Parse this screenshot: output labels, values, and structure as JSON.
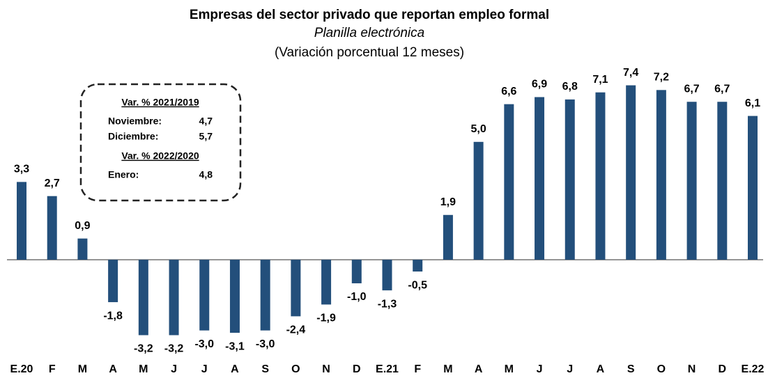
{
  "chart_data": {
    "type": "bar",
    "title": "Empresas del sector privado que reportan empleo formal",
    "subtitle": "Planilla electrónica",
    "note": "(Variación porcentual 12 meses)",
    "categories": [
      "E.20",
      "F",
      "M",
      "A",
      "M",
      "J",
      "J",
      "A",
      "S",
      "O",
      "N",
      "D",
      "E.21",
      "F",
      "M",
      "A",
      "M",
      "J",
      "J",
      "A",
      "S",
      "O",
      "N",
      "D",
      "E.22"
    ],
    "values": [
      3.3,
      2.7,
      0.9,
      -1.8,
      -3.2,
      -3.2,
      -3.0,
      -3.1,
      -3.0,
      -2.4,
      -1.9,
      -1.0,
      -1.3,
      -0.5,
      1.9,
      5.0,
      6.6,
      6.9,
      6.8,
      7.1,
      7.4,
      7.2,
      6.7,
      6.7,
      6.1
    ],
    "value_labels": [
      "3,3",
      "2,7",
      "0,9",
      "-1,8",
      "-3,2",
      "-3,2",
      "-3,0",
      "-3,1",
      "-3,0",
      "-2,4",
      "-1,9",
      "-1,0",
      "-1,3",
      "-0,5",
      "1,9",
      "5,0",
      "6,6",
      "6,9",
      "6,8",
      "7,1",
      "7,4",
      "7,2",
      "6,7",
      "6,7",
      "6,1"
    ],
    "color": "#234f7b",
    "ylim": [
      -3.6,
      7.8
    ],
    "inset": [
      {
        "heading": "Var. % 2021/2019",
        "rows": [
          [
            "Noviembre:",
            "4,7"
          ],
          [
            "Diciembre:",
            "5,7"
          ]
        ]
      },
      {
        "heading": "Var. % 2022/2020",
        "rows": [
          [
            "Enero:",
            "4,8"
          ]
        ]
      }
    ]
  }
}
